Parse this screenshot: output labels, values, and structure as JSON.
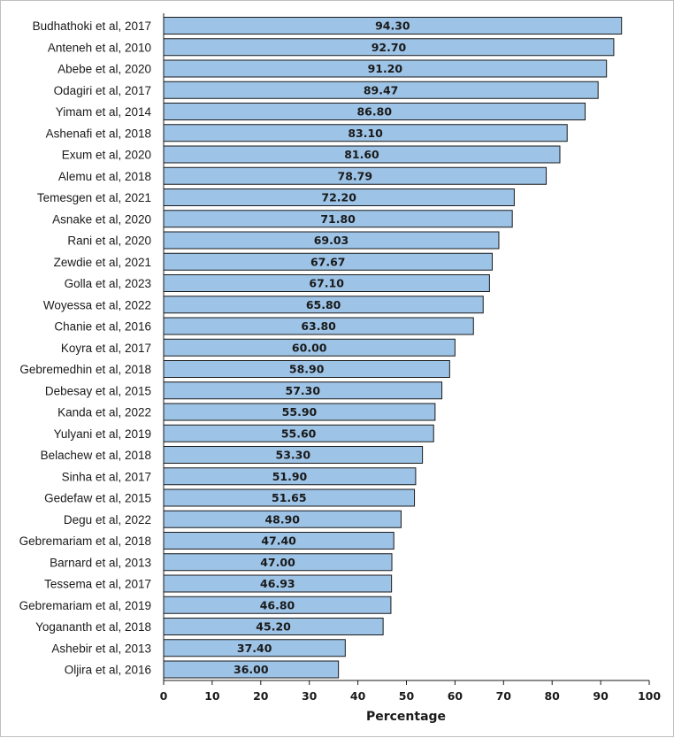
{
  "chart_data": {
    "type": "bar",
    "orientation": "horizontal",
    "title": "",
    "xlabel": "Percentage",
    "ylabel": "",
    "xlim": [
      0,
      100
    ],
    "xticks": [
      0,
      10,
      20,
      30,
      40,
      50,
      60,
      70,
      80,
      90,
      100
    ],
    "grid": false,
    "bar_color": "#9dc3e6",
    "bar_edge_color": "#1a1a1a",
    "categories": [
      "Budhathoki et al, 2017",
      "Anteneh et al, 2010",
      "Abebe et al, 2020",
      "Odagiri et al, 2017",
      "Yimam et al, 2014",
      "Ashenafi et al, 2018",
      "Exum et al, 2020",
      "Alemu et al, 2018",
      "Temesgen et al, 2021",
      "Asnake et al, 2020",
      "Rani et al, 2020",
      "Zewdie et al, 2021",
      "Golla et al, 2023",
      "Woyessa et al, 2022",
      "Chanie et al, 2016",
      "Koyra et al, 2017",
      "Gebremedhin et al, 2018",
      "Debesay et al, 2015",
      "Kanda et al, 2022",
      "Yulyani et al, 2019",
      "Belachew et al, 2018",
      "Sinha et al, 2017",
      "Gedefaw et al, 2015",
      "Degu et al, 2022",
      "Gebremariam et al, 2018",
      "Barnard et al, 2013",
      "Tessema et al, 2017",
      "Gebremariam et al, 2019",
      "Yogananth et al, 2018",
      "Ashebir et al, 2013",
      "Oljira et al, 2016"
    ],
    "values": [
      94.3,
      92.7,
      91.2,
      89.47,
      86.8,
      83.1,
      81.6,
      78.79,
      72.2,
      71.8,
      69.03,
      67.67,
      67.1,
      65.8,
      63.8,
      60.0,
      58.9,
      57.3,
      55.9,
      55.6,
      53.3,
      51.9,
      51.65,
      48.9,
      47.4,
      47.0,
      46.93,
      46.8,
      45.2,
      37.4,
      36.0
    ],
    "value_labels": [
      "94.30",
      "92.70",
      "91.20",
      "89.47",
      "86.80",
      "83.10",
      "81.60",
      "78.79",
      "72.20",
      "71.80",
      "69.03",
      "67.67",
      "67.10",
      "65.80",
      "63.80",
      "60.00",
      "58.90",
      "57.30",
      "55.90",
      "55.60",
      "53.30",
      "51.90",
      "51.65",
      "48.90",
      "47.40",
      "47.00",
      "46.93",
      "46.80",
      "45.20",
      "37.40",
      "36.00"
    ]
  }
}
